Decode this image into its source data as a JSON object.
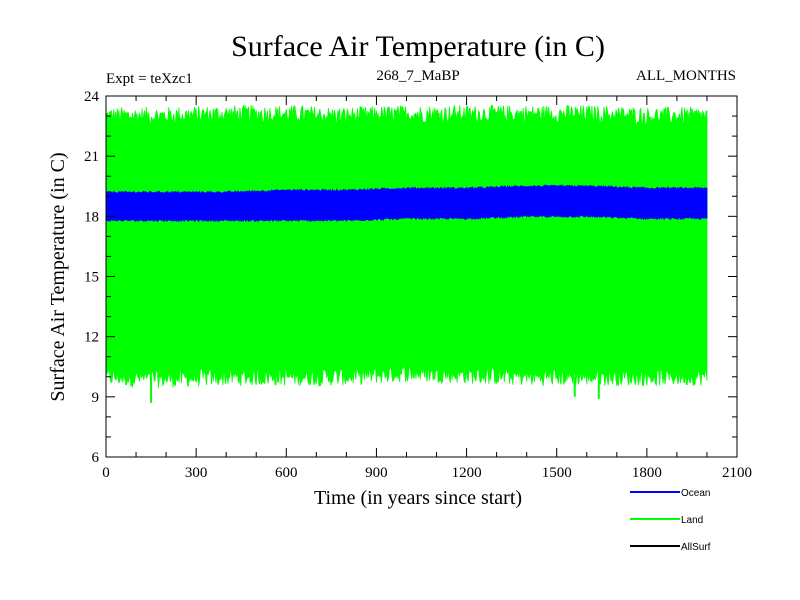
{
  "chart_data": {
    "type": "area",
    "title": "Surface Air Temperature (in C)",
    "subtitle_left": "Expt = teXzc1",
    "subtitle_center": "268_7_MaBP",
    "subtitle_right": "ALL_MONTHS",
    "xlabel": "Time (in years since start)",
    "ylabel": "Surface Air Temperature (in C)",
    "xlim": [
      0,
      2100
    ],
    "ylim": [
      6,
      24
    ],
    "xticks": [
      0,
      300,
      600,
      900,
      1200,
      1500,
      1800,
      2100
    ],
    "yticks": [
      6,
      9,
      12,
      15,
      18,
      21,
      24
    ],
    "x_start": 0,
    "x_end": 2000,
    "series": [
      {
        "name": "Land",
        "color": "#00ff00",
        "envelope_x": [
          0,
          200,
          400,
          600,
          800,
          1000,
          1200,
          1400,
          1600,
          1800,
          2000
        ],
        "envelope_low": [
          10.0,
          9.9,
          10.0,
          10.0,
          10.0,
          10.2,
          10.1,
          10.0,
          10.0,
          10.0,
          10.0
        ],
        "envelope_high": [
          23.0,
          23.0,
          23.1,
          23.1,
          23.0,
          23.1,
          23.1,
          23.1,
          23.1,
          23.0,
          23.0
        ]
      },
      {
        "name": "Ocean",
        "color": "#0000ff",
        "envelope_x": [
          0,
          200,
          400,
          600,
          800,
          1000,
          1200,
          1400,
          1600,
          1800,
          2000
        ],
        "envelope_low": [
          17.8,
          17.8,
          17.8,
          17.8,
          17.8,
          17.9,
          17.9,
          18.0,
          18.0,
          17.9,
          17.9
        ],
        "envelope_high": [
          19.2,
          19.2,
          19.2,
          19.3,
          19.3,
          19.4,
          19.4,
          19.5,
          19.5,
          19.4,
          19.4
        ]
      },
      {
        "name": "AllSurf",
        "color": "#000000",
        "envelope_x": [],
        "envelope_low": [],
        "envelope_high": []
      }
    ],
    "legend": [
      {
        "name": "Ocean",
        "color": "#0000ff"
      },
      {
        "name": "Land",
        "color": "#00ff00"
      },
      {
        "name": "AllSurf",
        "color": "#000000"
      }
    ],
    "legend_position": "bottom-right"
  }
}
